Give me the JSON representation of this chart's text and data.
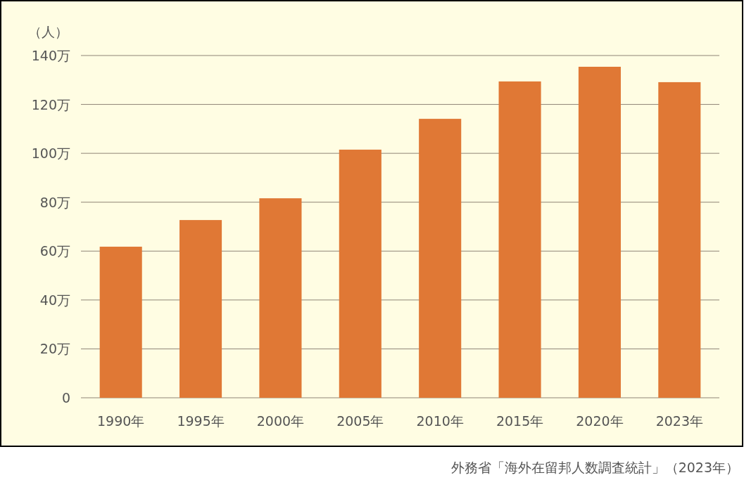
{
  "chart_data": {
    "type": "bar",
    "ylabel": "（人）",
    "categories": [
      "1990年",
      "1995年",
      "2000年",
      "2005年",
      "2010年",
      "2015年",
      "2020年",
      "2023年"
    ],
    "values": [
      61.8,
      72.7,
      81.6,
      101.5,
      114.1,
      129.4,
      135.4,
      129.1
    ],
    "color": "#e07835",
    "ylim": [
      0,
      140
    ],
    "yticks": [
      0,
      {
        "value": 20,
        "label": "20万"
      },
      {
        "value": 40,
        "label": "40万"
      },
      {
        "value": 60,
        "label": "60万"
      },
      {
        "value": 80,
        "label": "80万"
      },
      {
        "value": 100,
        "label": "100万"
      },
      {
        "value": 120,
        "label": "120万"
      },
      {
        "value": 140,
        "label": "140万"
      }
    ],
    "grid": "y",
    "annotations": [
      "外務省「海外在留邦人数調査統計」（2023年）"
    ]
  }
}
